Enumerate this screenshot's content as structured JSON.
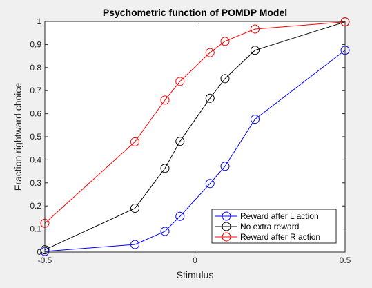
{
  "chart_data": {
    "type": "line",
    "title": "Psychometric function of POMDP Model",
    "xlabel": "Stimulus",
    "ylabel": "Fraction rightward choice",
    "xlim": [
      -0.5,
      0.5
    ],
    "ylim": [
      0,
      1
    ],
    "xticks": [
      -0.5,
      0,
      0.5
    ],
    "xtick_labels": [
      "-0.5",
      "0",
      "0.5"
    ],
    "yticks": [
      0,
      0.1,
      0.2,
      0.3,
      0.4,
      0.5,
      0.6,
      0.7,
      0.8,
      0.9,
      1
    ],
    "ytick_labels": [
      "0",
      "0.1",
      "0.2",
      "0.3",
      "0.4",
      "0.5",
      "0.6",
      "0.7",
      "0.8",
      "0.9",
      "1"
    ],
    "grid": false,
    "marker": "circle",
    "legend_position": "bottom-right",
    "series": [
      {
        "name": "Reward after L action",
        "color": "#0000ff",
        "x": [
          -0.5,
          -0.2,
          -0.1,
          -0.05,
          0.05,
          0.1,
          0.2,
          0.5
        ],
        "y": [
          0.003,
          0.033,
          0.09,
          0.155,
          0.297,
          0.372,
          0.576,
          0.875
        ]
      },
      {
        "name": "No extra reward",
        "color": "#000000",
        "x": [
          -0.5,
          -0.2,
          -0.1,
          -0.05,
          0.05,
          0.1,
          0.2,
          0.5
        ],
        "y": [
          0.01,
          0.19,
          0.363,
          0.48,
          0.667,
          0.752,
          0.875,
          0.998
        ]
      },
      {
        "name": "Reward after R action",
        "color": "#ff0000",
        "x": [
          -0.5,
          -0.2,
          -0.1,
          -0.05,
          0.05,
          0.1,
          0.2,
          0.5
        ],
        "y": [
          0.125,
          0.478,
          0.659,
          0.74,
          0.865,
          0.914,
          0.967,
          0.998
        ]
      }
    ]
  }
}
